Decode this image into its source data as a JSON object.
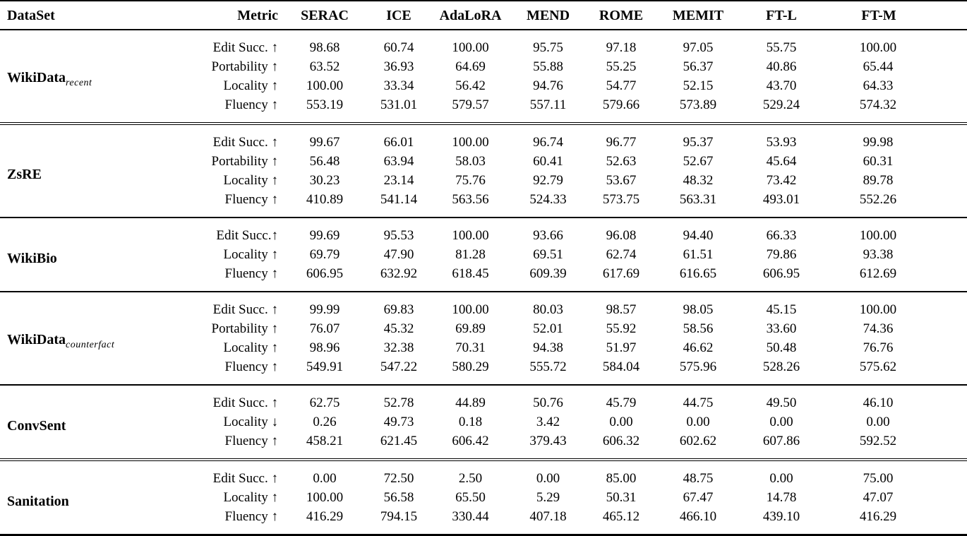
{
  "table": {
    "columns": [
      "DataSet",
      "Metric",
      "SERAC",
      "ICE",
      "AdaLoRA",
      "MEND",
      "ROME",
      "MEMIT",
      "FT-L",
      "FT-M"
    ],
    "sections": [
      {
        "dataset": "WikiData",
        "dataset_subscript": "recent",
        "rule_top": "none",
        "rows": [
          {
            "metric": "Edit Succ. ↑",
            "values": [
              "98.68",
              "60.74",
              "100.00",
              "95.75",
              "97.18",
              "97.05",
              "55.75",
              "100.00"
            ]
          },
          {
            "metric": "Portability ↑",
            "values": [
              "63.52",
              "36.93",
              "64.69",
              "55.88",
              "55.25",
              "56.37",
              "40.86",
              "65.44"
            ]
          },
          {
            "metric": "Locality ↑",
            "values": [
              "100.00",
              "33.34",
              "56.42",
              "94.76",
              "54.77",
              "52.15",
              "43.70",
              "64.33"
            ]
          },
          {
            "metric": "Fluency ↑",
            "values": [
              "553.19",
              "531.01",
              "579.57",
              "557.11",
              "579.66",
              "573.89",
              "529.24",
              "574.32"
            ]
          }
        ]
      },
      {
        "dataset": "ZsRE",
        "dataset_subscript": "",
        "rule_top": "double",
        "rows": [
          {
            "metric": "Edit Succ. ↑",
            "values": [
              "99.67",
              "66.01",
              "100.00",
              "96.74",
              "96.77",
              "95.37",
              "53.93",
              "99.98"
            ]
          },
          {
            "metric": "Portability ↑",
            "values": [
              "56.48",
              "63.94",
              "58.03",
              "60.41",
              "52.63",
              "52.67",
              "45.64",
              "60.31"
            ]
          },
          {
            "metric": "Locality ↑",
            "values": [
              "30.23",
              "23.14",
              "75.76",
              "92.79",
              "53.67",
              "48.32",
              "73.42",
              "89.78"
            ]
          },
          {
            "metric": "Fluency ↑",
            "values": [
              "410.89",
              "541.14",
              "563.56",
              "524.33",
              "573.75",
              "563.31",
              "493.01",
              "552.26"
            ]
          }
        ]
      },
      {
        "dataset": "WikiBio",
        "dataset_subscript": "",
        "rule_top": "single",
        "rows": [
          {
            "metric": "Edit Succ.↑",
            "values": [
              "99.69",
              "95.53",
              "100.00",
              "93.66",
              "96.08",
              "94.40",
              "66.33",
              "100.00"
            ]
          },
          {
            "metric": "Locality ↑",
            "values": [
              "69.79",
              "47.90",
              "81.28",
              "69.51",
              "62.74",
              "61.51",
              "79.86",
              "93.38"
            ]
          },
          {
            "metric": "Fluency ↑",
            "values": [
              "606.95",
              "632.92",
              "618.45",
              "609.39",
              "617.69",
              "616.65",
              "606.95",
              "612.69"
            ]
          }
        ]
      },
      {
        "dataset": "WikiData",
        "dataset_subscript": "counterfact",
        "rule_top": "single",
        "rows": [
          {
            "metric": "Edit Succ. ↑",
            "values": [
              "99.99",
              "69.83",
              "100.00",
              "80.03",
              "98.57",
              "98.05",
              "45.15",
              "100.00"
            ]
          },
          {
            "metric": "Portability ↑",
            "values": [
              "76.07",
              "45.32",
              "69.89",
              "52.01",
              "55.92",
              "58.56",
              "33.60",
              "74.36"
            ]
          },
          {
            "metric": "Locality ↑",
            "values": [
              "98.96",
              "32.38",
              "70.31",
              "94.38",
              "51.97",
              "46.62",
              "50.48",
              "76.76"
            ]
          },
          {
            "metric": "Fluency ↑",
            "values": [
              "549.91",
              "547.22",
              "580.29",
              "555.72",
              "584.04",
              "575.96",
              "528.26",
              "575.62"
            ]
          }
        ]
      },
      {
        "dataset": "ConvSent",
        "dataset_subscript": "",
        "rule_top": "single",
        "rows": [
          {
            "metric": "Edit Succ. ↑",
            "values": [
              "62.75",
              "52.78",
              "44.89",
              "50.76",
              "45.79",
              "44.75",
              "49.50",
              "46.10"
            ]
          },
          {
            "metric": "Locality ↓",
            "values": [
              "0.26",
              "49.73",
              "0.18",
              "3.42",
              "0.00",
              "0.00",
              "0.00",
              "0.00"
            ]
          },
          {
            "metric": "Fluency ↑",
            "values": [
              "458.21",
              "621.45",
              "606.42",
              "379.43",
              "606.32",
              "602.62",
              "607.86",
              "592.52"
            ]
          }
        ]
      },
      {
        "dataset": "Sanitation",
        "dataset_subscript": "",
        "rule_top": "double",
        "rows": [
          {
            "metric": "Edit Succ. ↑",
            "values": [
              "0.00",
              "72.50",
              "2.50",
              "0.00",
              "85.00",
              "48.75",
              "0.00",
              "75.00"
            ]
          },
          {
            "metric": "Locality ↑",
            "values": [
              "100.00",
              "56.58",
              "65.50",
              "5.29",
              "50.31",
              "67.47",
              "14.78",
              "47.07"
            ]
          },
          {
            "metric": "Fluency ↑",
            "values": [
              "416.29",
              "794.15",
              "330.44",
              "407.18",
              "465.12",
              "466.10",
              "439.10",
              "416.29"
            ]
          }
        ]
      }
    ]
  }
}
